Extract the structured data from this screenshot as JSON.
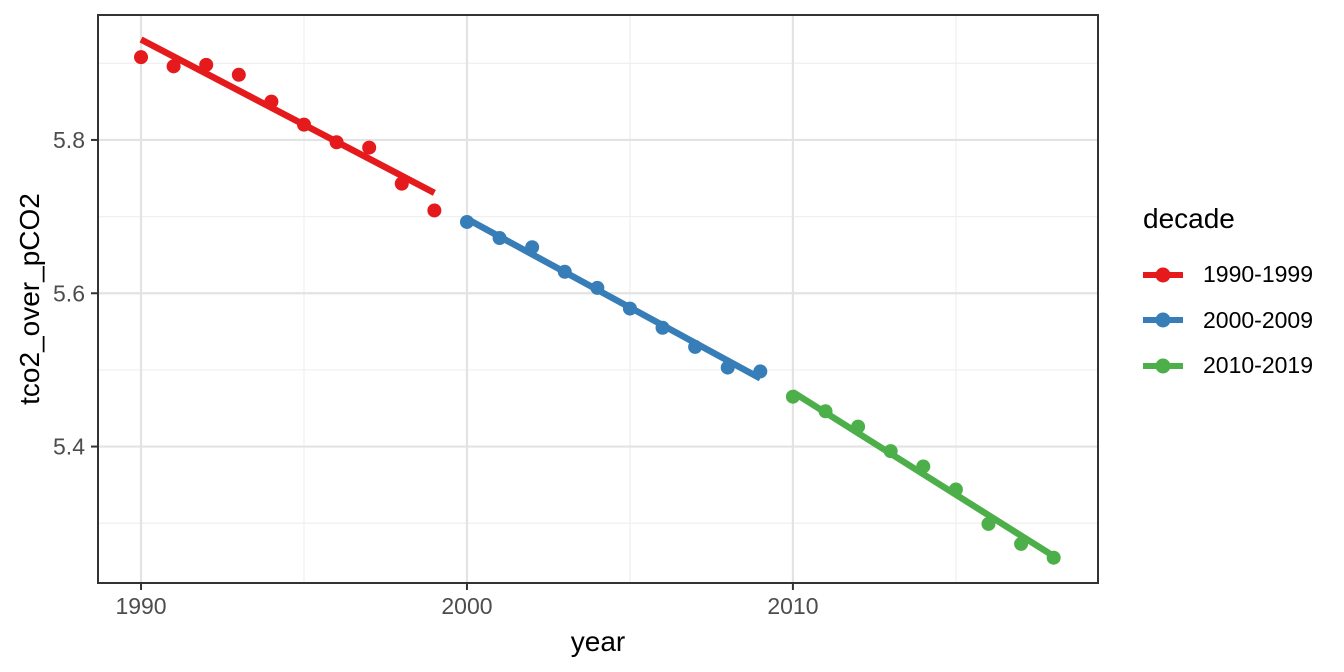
{
  "figure": {
    "background": "#ffffff",
    "panel_border_color": "#333333",
    "grid_major_color": "#e3e3e3",
    "grid_minor_color": "#f0f0f0",
    "tick_mark_color": "#333333",
    "tick_label_color": "#4d4d4d",
    "title_color": "#000000"
  },
  "chart_data": {
    "type": "scatter",
    "title": "",
    "xlabel": "year",
    "ylabel": "tco2_over_pCO2",
    "legend_title": "decade",
    "legend_position": "right",
    "grid": true,
    "xlim": [
      1988.68,
      2019.36
    ],
    "ylim": [
      5.222,
      5.963
    ],
    "x_ticks": {
      "values": [
        1990,
        2000,
        2010
      ],
      "labels": [
        "1990",
        "2000",
        "2010"
      ]
    },
    "y_ticks": {
      "values": [
        5.4,
        5.6,
        5.8
      ],
      "labels": [
        "5.4",
        "5.6",
        "5.8"
      ]
    },
    "x_minor_ticks": [
      1995,
      2005,
      2015
    ],
    "y_minor_ticks": [
      5.3,
      5.5,
      5.7,
      5.9
    ],
    "series": [
      {
        "name": "1990-1999",
        "color": "#E41A1C",
        "x": [
          1990,
          1991,
          1992,
          1993,
          1994,
          1995,
          1996,
          1997,
          1998,
          1999
        ],
        "y": [
          5.908,
          5.896,
          5.898,
          5.885,
          5.85,
          5.82,
          5.797,
          5.79,
          5.743,
          5.708
        ],
        "trend": {
          "x": [
            1990,
            1999
          ],
          "y": [
            5.931,
            5.731
          ]
        }
      },
      {
        "name": "2000-2009",
        "color": "#377EB8",
        "x": [
          2000,
          2001,
          2002,
          2003,
          2004,
          2005,
          2006,
          2007,
          2008,
          2009
        ],
        "y": [
          5.693,
          5.672,
          5.66,
          5.628,
          5.607,
          5.58,
          5.555,
          5.53,
          5.503,
          5.498
        ],
        "trend": {
          "x": [
            2000,
            2009
          ],
          "y": [
            5.697,
            5.489
          ]
        }
      },
      {
        "name": "2010-2019",
        "color": "#4DAF4A",
        "x": [
          2010,
          2011,
          2012,
          2013,
          2014,
          2015,
          2016,
          2017,
          2018
        ],
        "y": [
          5.465,
          5.446,
          5.426,
          5.394,
          5.374,
          5.344,
          5.299,
          5.273,
          5.255
        ],
        "trend": {
          "x": [
            2010,
            2018
          ],
          "y": [
            5.471,
            5.257
          ]
        }
      }
    ]
  }
}
